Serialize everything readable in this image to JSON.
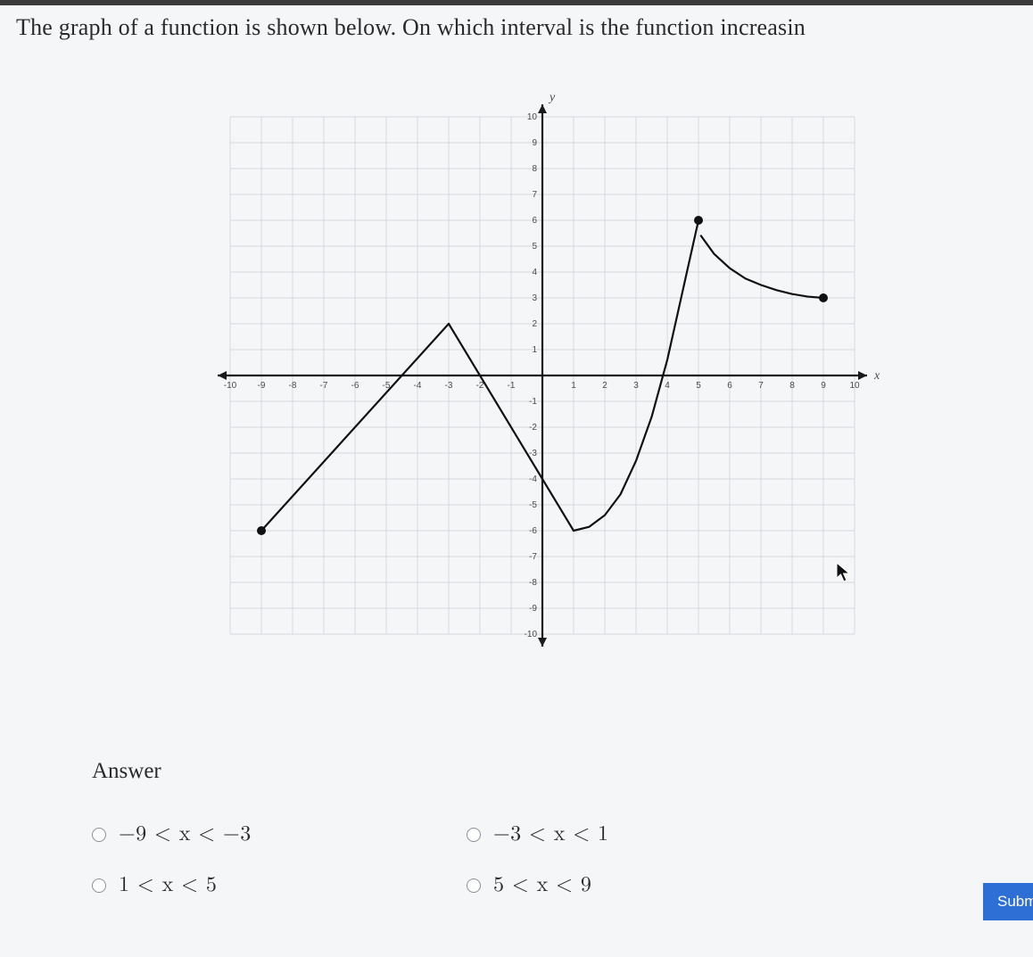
{
  "question_text": "The graph of a function is shown below. On which interval is the function increasin",
  "answer_heading": "Answer",
  "options": {
    "a": {
      "label": "−9 < x < −3"
    },
    "b": {
      "label": "−3 < x < 1"
    },
    "c": {
      "label": "1 < x < 5"
    },
    "d": {
      "label": "5 < x < 9"
    }
  },
  "submit_label": "Subm",
  "chart": {
    "type": "line",
    "xlim": [
      -10,
      10
    ],
    "ylim": [
      -10,
      10
    ],
    "xtick_step": 1,
    "ytick_step": 1,
    "x_axis_label": "x",
    "y_axis_label": "y",
    "grid_color": "#c9cfd6",
    "grid_stroke": 0.7,
    "axis_color": "#1a1a1a",
    "axis_stroke": 2.2,
    "tick_label_fontsize": 10,
    "tick_label_color": "#4a4a4a",
    "segments": [
      {
        "kind": "line",
        "points": [
          [
            -9,
            -6
          ],
          [
            -3,
            2
          ]
        ],
        "left_endpoint": "closed",
        "right_endpoint": "none",
        "stroke": "#111111",
        "stroke_width": 2.2
      },
      {
        "kind": "line",
        "points": [
          [
            -3,
            2
          ],
          [
            1,
            -6
          ]
        ],
        "stroke": "#111111",
        "stroke_width": 2.2
      },
      {
        "kind": "curve",
        "points": [
          [
            1,
            -6
          ],
          [
            1.5,
            -5.85
          ],
          [
            2,
            -5.4
          ],
          [
            2.5,
            -4.6
          ],
          [
            3,
            -3.3
          ],
          [
            3.5,
            -1.6
          ],
          [
            4,
            0.6
          ],
          [
            4.5,
            3.3
          ],
          [
            5,
            6
          ]
        ],
        "right_endpoint": "closed",
        "stroke": "#111111",
        "stroke_width": 2.2
      },
      {
        "kind": "curve",
        "points": [
          [
            5.08,
            5.4
          ],
          [
            5.5,
            4.7
          ],
          [
            6,
            4.15
          ],
          [
            6.5,
            3.75
          ],
          [
            7,
            3.5
          ],
          [
            7.5,
            3.3
          ],
          [
            8,
            3.15
          ],
          [
            8.5,
            3.05
          ],
          [
            9,
            3
          ]
        ],
        "left_endpoint": "open_near",
        "right_endpoint": "closed",
        "stroke": "#111111",
        "stroke_width": 2.2
      }
    ],
    "endpoint_fill": "#111111",
    "endpoint_radius": 5
  }
}
